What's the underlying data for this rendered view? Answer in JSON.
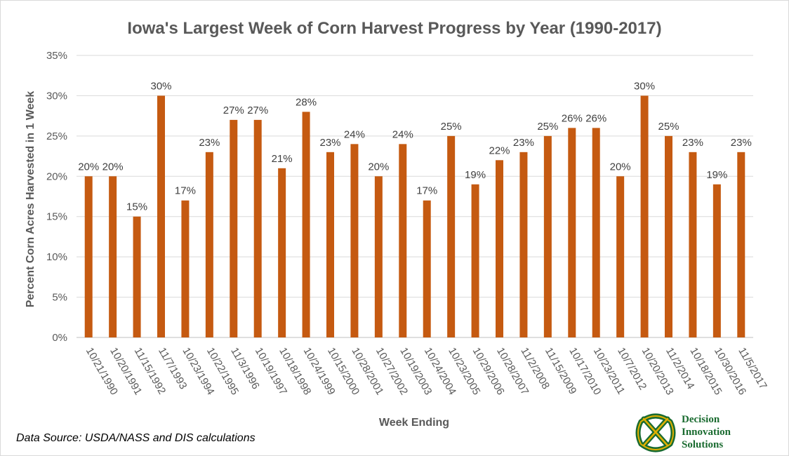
{
  "chart_data": {
    "type": "bar",
    "title": "Iowa's Largest Week of Corn Harvest Progress by Year (1990-2017)",
    "xlabel": "Week Ending",
    "ylabel": "Percent Corn Acres Harvested in 1 Week",
    "ylim": [
      0,
      35
    ],
    "yticks": [
      "0%",
      "5%",
      "10%",
      "15%",
      "20%",
      "25%",
      "30%",
      "35%"
    ],
    "grid": true,
    "categories": [
      "10/21/1990",
      "10/20/1991",
      "11/15/1992",
      "11/7/1993",
      "10/23/1994",
      "10/22/1995",
      "11/3/1996",
      "10/19/1997",
      "10/18/1998",
      "10/24/1999",
      "10/15/2000",
      "10/28/2001",
      "10/27/2002",
      "10/19/2003",
      "10/24/2004",
      "10/23/2005",
      "10/29/2006",
      "10/28/2007",
      "11/2/2008",
      "11/15/2009",
      "10/17/2010",
      "10/23/2011",
      "10/7/2012",
      "10/20/2013",
      "11/2/2014",
      "10/18/2015",
      "10/30/2016",
      "11/5/2017"
    ],
    "values": [
      20,
      20,
      15,
      30,
      17,
      23,
      27,
      27,
      21,
      28,
      23,
      24,
      20,
      24,
      17,
      25,
      19,
      22,
      23,
      25,
      26,
      26,
      20,
      30,
      25,
      23,
      19,
      23
    ],
    "data_labels": [
      "20%",
      "20%",
      "15%",
      "30%",
      "17%",
      "23%",
      "27%",
      "27%",
      "21%",
      "28%",
      "23%",
      "24%",
      "20%",
      "24%",
      "17%",
      "25%",
      "19%",
      "22%",
      "23%",
      "25%",
      "26%",
      "26%",
      "20%",
      "30%",
      "25%",
      "23%",
      "19%",
      "23%"
    ],
    "bar_color": "#c55a11"
  },
  "footer": {
    "source": "Data Source: USDA/NASS and DIS calculations"
  },
  "logo": {
    "line1": "Decision",
    "line2": "Innovation",
    "line3": "Solutions",
    "color_green": "#1a6b30",
    "color_gold": "#e0b000"
  }
}
